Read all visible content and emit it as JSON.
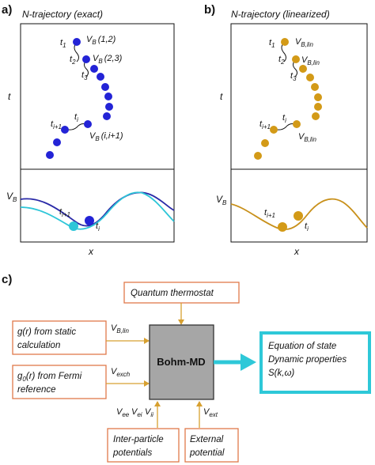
{
  "colors": {
    "exact_dot": "#2323d6",
    "exact_curve_dark": "#2a2aa8",
    "exact_curve_light": "#2ec6d8",
    "lin_dot": "#d39a17",
    "lin_curve": "#c8901a",
    "box_border": "#e07a4a",
    "arrow": "#d7a030",
    "bohm_fill": "#a6a6a6",
    "output_border": "#2ec8d8"
  },
  "panel_a": {
    "label": "a)",
    "title": "N-trajectory (exact)",
    "t_axis": "t",
    "x_axis": "x",
    "v_axis": "V",
    "v_sub": "B",
    "labels": {
      "t1": "t",
      "t1_sub": "1",
      "t2": "t",
      "t2_sub": "2",
      "t3": "t",
      "t3_sub": "3",
      "ti": "t",
      "ti_sub": "i",
      "tip1": "t",
      "tip1_sub": "i+1",
      "vb12": "V",
      "vb12_sub": "B",
      "vb12_args": "(1,2)",
      "vb23": "V",
      "vb23_sub": "B",
      "vb23_args": "(2,3)",
      "vbi": "V",
      "vbi_sub": "B",
      "vbi_args": "(i,i+1)",
      "bot_tip1": "t",
      "bot_tip1_sub": "i+1",
      "bot_ti": "t",
      "bot_ti_sub": "i"
    }
  },
  "panel_b": {
    "label": "b)",
    "title": "N-trajectory (linearized)",
    "t_axis": "t",
    "x_axis": "x",
    "v_axis": "V",
    "v_sub": "B",
    "labels": {
      "t1": "t",
      "t1_sub": "1",
      "t2": "t",
      "t2_sub": "2",
      "t3": "t",
      "t3_sub": "3",
      "ti": "t",
      "ti_sub": "i",
      "tip1": "t",
      "tip1_sub": "i+1",
      "vb1": "V",
      "vb1_sub": "B,lin",
      "vb2": "V",
      "vb2_sub": "B,lin",
      "vbi": "V",
      "vbi_sub": "B,lin",
      "bot_tip1": "t",
      "bot_tip1_sub": "i+1",
      "bot_ti": "t",
      "bot_ti_sub": "i"
    }
  },
  "panel_c": {
    "label": "c)",
    "thermostat": "Quantum thermostat",
    "gr_line1": "g(r) from static",
    "gr_line2": "calculation",
    "g0_line1_a": "g",
    "g0_line1_sub": "0",
    "g0_line1_b": "(r) from Fermi",
    "g0_line2": "reference",
    "vblin": "V",
    "vblin_sub": "B,lin",
    "vexch": "V",
    "vexch_sub": "exch",
    "bohm": "Bohm-MD",
    "vee": "V",
    "vee_sub": "ee",
    "vei": "V",
    "vei_sub": "ei",
    "vii": "V",
    "vii_sub": "ii",
    "vext": "V",
    "vext_sub": "ext",
    "inter_line1": "Inter-particle",
    "inter_line2": "potentials",
    "ext_line1": "External",
    "ext_line2": "potential",
    "out_line1": "Equation of state",
    "out_line2": "Dynamic properties",
    "out_line3": "S(k,ω)"
  }
}
